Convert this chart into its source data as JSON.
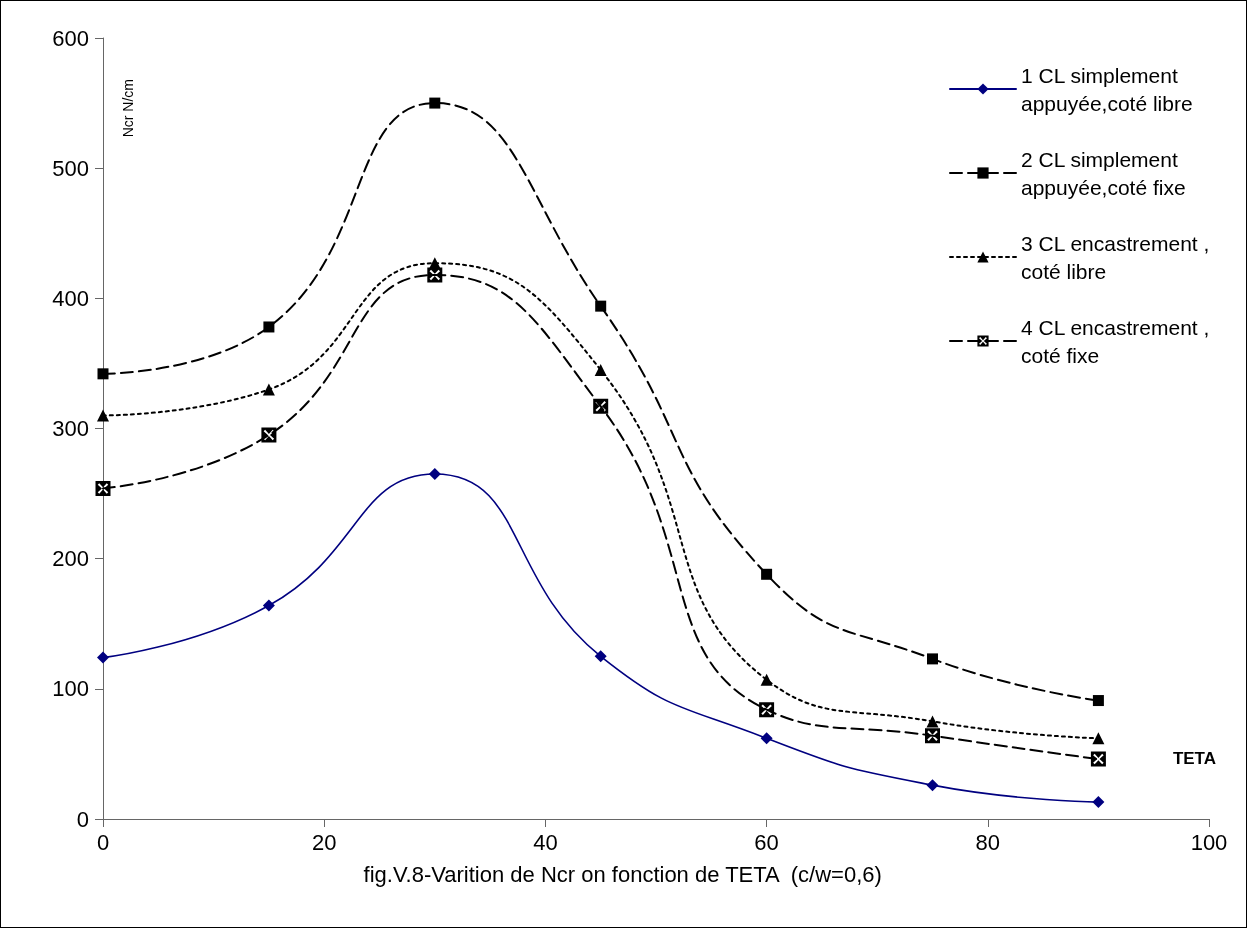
{
  "chart_data": {
    "type": "line",
    "xlabel": "TETA",
    "ylabel": "Ncr N/cm",
    "annotations": [
      "fig.V.8-Varition de Ncr on fonction de TETA  (c/w=0,6)"
    ],
    "x": [
      0,
      15,
      30,
      45,
      60,
      75,
      90
    ],
    "series": [
      {
        "name": "1 CL simplement appuyée,coté libre",
        "color": "#000080",
        "marker": "diamond",
        "line_style": "solid",
        "values": [
          124,
          164,
          265,
          125,
          62,
          26,
          13
        ]
      },
      {
        "name": "2 CL simplement appuyée,coté fixe",
        "color": "#000000",
        "marker": "square",
        "line_style": "dashed",
        "values": [
          342,
          378,
          550,
          394,
          188,
          123,
          91
        ]
      },
      {
        "name": "3 CL encastrement , coté libre",
        "color": "#000000",
        "marker": "triangle",
        "line_style": "dotted",
        "values": [
          310,
          330,
          427,
          345,
          107,
          75,
          62
        ]
      },
      {
        "name": "4 CL encastrement , coté fixe",
        "color": "#000000",
        "marker": "cross",
        "line_style": "dashed",
        "values": [
          254,
          295,
          418,
          317,
          84,
          64,
          46
        ]
      }
    ],
    "xlim": [
      0,
      100
    ],
    "xticks": [
      0,
      20,
      40,
      60,
      80,
      100
    ],
    "ylim": [
      0,
      600
    ],
    "yticks": [
      0,
      100,
      200,
      300,
      400,
      500,
      600
    ],
    "grid": false,
    "legend": "top right"
  }
}
